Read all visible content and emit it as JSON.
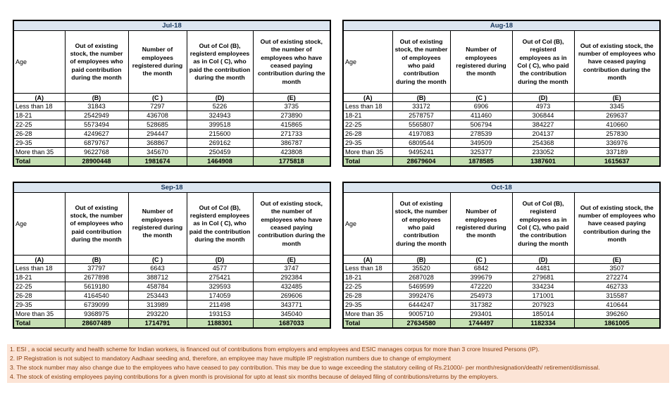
{
  "labels": {
    "age": "Age",
    "total": "Total"
  },
  "columns": {
    "headers": [
      "Out of existing stock, the number of employees who paid contribution during the month",
      "Number of employees registered during the month",
      "Out of Col (B), registerd employees as in Col ( C), who paid the contribution during the month",
      "Out of existing stock, the number of employees who have ceased paying contribution during the month"
    ],
    "letters": [
      "(A)",
      "(B)",
      "(C )",
      "(D)",
      "(E)"
    ]
  },
  "months": [
    {
      "title": "Jul-18",
      "rows": [
        {
          "age": "Less than 18",
          "values": [
            31843,
            7297,
            5226,
            3735
          ]
        },
        {
          "age": "18-21",
          "values": [
            2542949,
            436708,
            324943,
            273890
          ]
        },
        {
          "age": "22-25",
          "values": [
            5573494,
            528685,
            399518,
            415865
          ]
        },
        {
          "age": "26-28",
          "values": [
            4249627,
            294447,
            215600,
            271733
          ]
        },
        {
          "age": "29-35",
          "values": [
            6879767,
            368867,
            269162,
            386787
          ]
        },
        {
          "age": "More than 35",
          "values": [
            9622768,
            345670,
            250459,
            423808
          ]
        }
      ],
      "total": [
        28900448,
        1981674,
        1464908,
        1775818
      ]
    },
    {
      "title": "Aug-18",
      "rows": [
        {
          "age": "Less than 18",
          "values": [
            33172,
            6906,
            4973,
            3345
          ]
        },
        {
          "age": "18-21",
          "values": [
            2578757,
            411460,
            306844,
            269637
          ]
        },
        {
          "age": "22-25",
          "values": [
            5565807,
            506794,
            384227,
            410660
          ]
        },
        {
          "age": "26-28",
          "values": [
            4197083,
            278539,
            204137,
            257830
          ]
        },
        {
          "age": "29-35",
          "values": [
            6809544,
            349509,
            254368,
            336976
          ]
        },
        {
          "age": "More than 35",
          "values": [
            9495241,
            325377,
            233052,
            337189
          ]
        }
      ],
      "total": [
        28679604,
        1878585,
        1387601,
        1615637
      ]
    },
    {
      "title": "Sep-18",
      "rows": [
        {
          "age": "Less than 18",
          "values": [
            37797,
            6643,
            4577,
            3747
          ]
        },
        {
          "age": "18-21",
          "values": [
            2677898,
            388712,
            275421,
            292384
          ]
        },
        {
          "age": "22-25",
          "values": [
            5619180,
            458784,
            329593,
            432485
          ]
        },
        {
          "age": "26-28",
          "values": [
            4164540,
            253443,
            174059,
            269606
          ]
        },
        {
          "age": "29-35",
          "values": [
            6739099,
            313989,
            211498,
            343771
          ]
        },
        {
          "age": "More than 35",
          "values": [
            9368975,
            293220,
            193153,
            345040
          ]
        }
      ],
      "total": [
        28607489,
        1714791,
        1188301,
        1687033
      ]
    },
    {
      "title": "Oct-18",
      "rows": [
        {
          "age": "Less than 18",
          "values": [
            35520,
            6842,
            4481,
            3507
          ]
        },
        {
          "age": "18-21",
          "values": [
            2687028,
            399679,
            279681,
            272274
          ]
        },
        {
          "age": "22-25",
          "values": [
            5469599,
            472220,
            334234,
            462733
          ]
        },
        {
          "age": "26-28",
          "values": [
            3992476,
            254973,
            171001,
            315587
          ]
        },
        {
          "age": "29-35",
          "values": [
            6444247,
            317382,
            207923,
            410644
          ]
        },
        {
          "age": "More than 35",
          "values": [
            9005710,
            293401,
            185014,
            396260
          ]
        }
      ],
      "total": [
        27634580,
        1744497,
        1182334,
        1861005
      ]
    }
  ],
  "footnotes": [
    "1. ESI , a social security and health scheme for Indian workers, is financed out of contributions from employers and employees and ESIC manages corpus for more than 3 crore Insured Persons (IP).",
    "2. IP Registration is not subject to mandatory Aadhaar seeding and, therefore, an employee may have multiple IP registration numbers due to change of employment",
    "3. The stock number may also change due to the employees who have ceased to pay contribution. This may  be due to wage exceeding the statutory ceiling of  Rs.21000/- per month/resignation/death/ retirement/dismissal.",
    "4. The stock of existing employees paying contributions for a given month is provisional for upto at least six months because of delayed filing of contributions/returns by the employers."
  ],
  "colors": {
    "month_title_bg": "#dce6f1",
    "total_row_bg": "#c6e0b4",
    "footnote_bg": "#fce4d6",
    "footnote_text": "#843c0c",
    "border": "#000000"
  }
}
